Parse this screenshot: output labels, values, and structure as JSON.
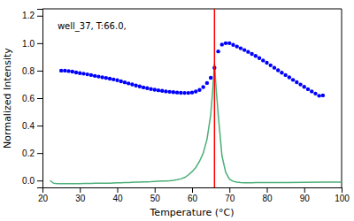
{
  "chart_data": {
    "type": "line",
    "xlabel": "Temperature (°C)",
    "ylabel": "Normalized Intensity",
    "annotation": "well_37, T:66.0,",
    "xlim": [
      20,
      100
    ],
    "ylim": [
      -0.05,
      1.25
    ],
    "xticks": [
      20,
      30,
      40,
      50,
      60,
      70,
      80,
      90,
      100
    ],
    "yticks": [
      {
        "value": 0.0,
        "label": "0.0"
      },
      0.2,
      0.4,
      0.6,
      0.8,
      {
        "value": 1.0,
        "label": "1.0"
      },
      1.2
    ],
    "grid": false,
    "series": [
      {
        "type": "line",
        "color": "#4caf78",
        "x": [
          22.0,
          23.0,
          24.0,
          25.0,
          26.0,
          27.0,
          28.0,
          29.0,
          30.0,
          31.0,
          32.0,
          33.0,
          34.0,
          35.0,
          36.0,
          37.0,
          38.0,
          39.0,
          40.0,
          41.0,
          42.0,
          43.0,
          44.0,
          45.0,
          46.0,
          47.0,
          48.0,
          49.0,
          50.0,
          51.0,
          52.0,
          53.0,
          54.0,
          55.0,
          56.0,
          57.0,
          58.0,
          59.0,
          60.0,
          61.0,
          62.0,
          63.0,
          64.0,
          65.0,
          65.5,
          66.0,
          66.5,
          67.0,
          68.0,
          69.0,
          70.0,
          71.0,
          72.0,
          73.0,
          74.0,
          75.0,
          76.0,
          77.0,
          78.0,
          79.0,
          80.0,
          85.0,
          90.0,
          95.0,
          100.0
        ],
        "values": [
          0.0,
          -0.02,
          -0.022,
          -0.023,
          -0.023,
          -0.023,
          -0.022,
          -0.022,
          -0.022,
          -0.021,
          -0.021,
          -0.021,
          -0.02,
          -0.02,
          -0.02,
          -0.019,
          -0.019,
          -0.018,
          -0.017,
          -0.016,
          -0.015,
          -0.014,
          -0.013,
          -0.012,
          -0.011,
          -0.01,
          -0.009,
          -0.008,
          -0.006,
          -0.005,
          -0.004,
          -0.003,
          -0.001,
          0.002,
          0.006,
          0.012,
          0.022,
          0.04,
          0.065,
          0.095,
          0.14,
          0.2,
          0.3,
          0.48,
          0.65,
          0.85,
          0.65,
          0.48,
          0.18,
          0.06,
          0.01,
          -0.006,
          -0.012,
          -0.015,
          -0.016,
          -0.016,
          -0.016,
          -0.015,
          -0.015,
          -0.015,
          -0.015,
          -0.014,
          -0.013,
          -0.012,
          -0.011
        ]
      },
      {
        "type": "scatter",
        "marker": "dot",
        "color": "blue",
        "x": [
          25,
          26,
          27,
          28,
          29,
          30,
          31,
          32,
          33,
          34,
          35,
          36,
          37,
          38,
          39,
          40,
          41,
          42,
          43,
          44,
          45,
          46,
          47,
          48,
          49,
          50,
          51,
          52,
          53,
          54,
          55,
          56,
          57,
          58,
          59,
          60,
          61,
          62,
          63,
          64,
          65,
          66,
          67,
          68,
          69,
          70,
          71,
          72,
          73,
          74,
          75,
          76,
          77,
          78,
          79,
          80,
          81,
          82,
          83,
          84,
          85,
          86,
          87,
          88,
          89,
          90,
          91,
          92,
          93,
          94,
          95
        ],
        "values": [
          0.8,
          0.8,
          0.797,
          0.793,
          0.787,
          0.782,
          0.778,
          0.773,
          0.768,
          0.762,
          0.757,
          0.752,
          0.747,
          0.742,
          0.736,
          0.73,
          0.722,
          0.715,
          0.707,
          0.7,
          0.692,
          0.685,
          0.678,
          0.672,
          0.666,
          0.661,
          0.657,
          0.653,
          0.649,
          0.646,
          0.643,
          0.641,
          0.639,
          0.638,
          0.638,
          0.641,
          0.648,
          0.66,
          0.68,
          0.71,
          0.748,
          0.82,
          0.94,
          0.99,
          1.0,
          1.0,
          0.988,
          0.976,
          0.963,
          0.95,
          0.937,
          0.922,
          0.907,
          0.891,
          0.874,
          0.857,
          0.839,
          0.821,
          0.803,
          0.785,
          0.768,
          0.751,
          0.733,
          0.716,
          0.699,
          0.682,
          0.665,
          0.649,
          0.633,
          0.617,
          0.62
        ]
      }
    ],
    "vlines": [
      {
        "x": 66.0,
        "color": "red"
      }
    ]
  }
}
